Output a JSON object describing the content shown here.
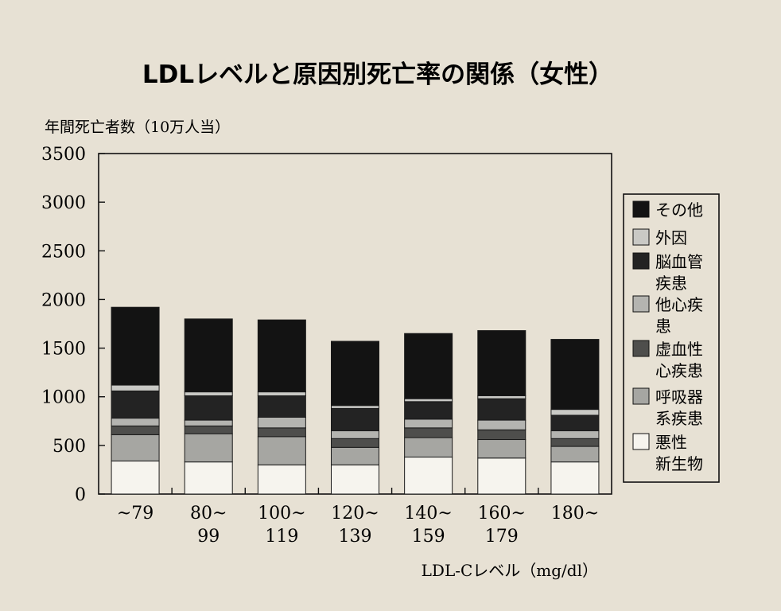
{
  "chart_data": {
    "type": "bar",
    "stacked": true,
    "title": "LDLレベルと原因別死亡率の関係（女性）",
    "ylabel": "年間死亡者数（10万人当）",
    "xlabel": "LDL-Cレベル（mg/dl）",
    "ylim": [
      0,
      3500
    ],
    "yticks": [
      0,
      500,
      1000,
      1500,
      2000,
      2500,
      3000,
      3500
    ],
    "categories": [
      [
        "~79",
        ""
      ],
      [
        "80~",
        "99"
      ],
      [
        "100~",
        "119"
      ],
      [
        "120~",
        "139"
      ],
      [
        "140~",
        "159"
      ],
      [
        "160~",
        "179"
      ],
      [
        "180~",
        ""
      ]
    ],
    "series": [
      {
        "name": "悪性新生物",
        "values": [
          340,
          330,
          300,
          300,
          380,
          370,
          330
        ]
      },
      {
        "name": "呼吸器系疾患",
        "values": [
          270,
          290,
          290,
          180,
          200,
          190,
          160
        ]
      },
      {
        "name": "虚血性心疾患",
        "values": [
          90,
          80,
          90,
          90,
          100,
          100,
          80
        ]
      },
      {
        "name": "他心疾患",
        "values": [
          80,
          60,
          110,
          80,
          90,
          100,
          80
        ]
      },
      {
        "name": "脳血管疾患",
        "values": [
          280,
          250,
          220,
          230,
          180,
          220,
          160
        ]
      },
      {
        "name": "外因",
        "values": [
          60,
          40,
          40,
          30,
          30,
          30,
          60
        ]
      },
      {
        "name": "その他",
        "values": [
          800,
          750,
          740,
          660,
          670,
          670,
          720
        ]
      }
    ],
    "legend": {
      "position": "right",
      "entries": [
        {
          "lines": [
            "その他"
          ],
          "series": 6
        },
        {
          "lines": [
            "外因"
          ],
          "series": 5
        },
        {
          "lines": [
            "脳血管",
            "疾患"
          ],
          "series": 4
        },
        {
          "lines": [
            "他心疾",
            "患"
          ],
          "series": 3
        },
        {
          "lines": [
            "虚血性",
            "心疾患"
          ],
          "series": 2
        },
        {
          "lines": [
            "呼吸器",
            "系疾患"
          ],
          "series": 1
        },
        {
          "lines": [
            "悪性",
            "新生物"
          ],
          "series": 0
        }
      ]
    },
    "colors": [
      "#f6f4ee",
      "#a6a6a2",
      "#4e4e4c",
      "#b4b4b0",
      "#232323",
      "#c9c9c5",
      "#131313"
    ],
    "grid": false
  }
}
